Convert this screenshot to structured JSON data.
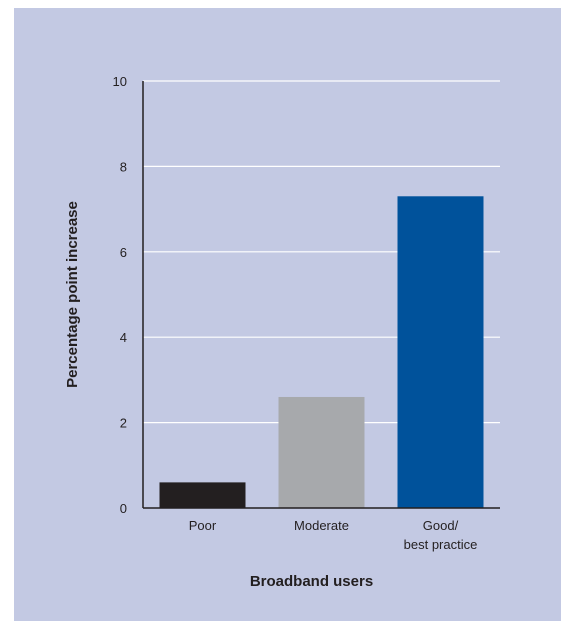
{
  "chart_data": {
    "type": "bar",
    "title": "",
    "xlabel": "Broadband users",
    "ylabel": "Percentage point increase",
    "ylim": [
      0,
      10
    ],
    "yticks": [
      0,
      2,
      4,
      6,
      8,
      10
    ],
    "grid": true,
    "categories": [
      {
        "label_lines": [
          "Poor"
        ],
        "value": 0.6,
        "color": "#231f20"
      },
      {
        "label_lines": [
          "Moderate"
        ],
        "value": 2.6,
        "color": "#a7a9ac"
      },
      {
        "label_lines": [
          "Good/",
          "best practice"
        ],
        "value": 7.3,
        "color": "#00529b"
      }
    ]
  }
}
